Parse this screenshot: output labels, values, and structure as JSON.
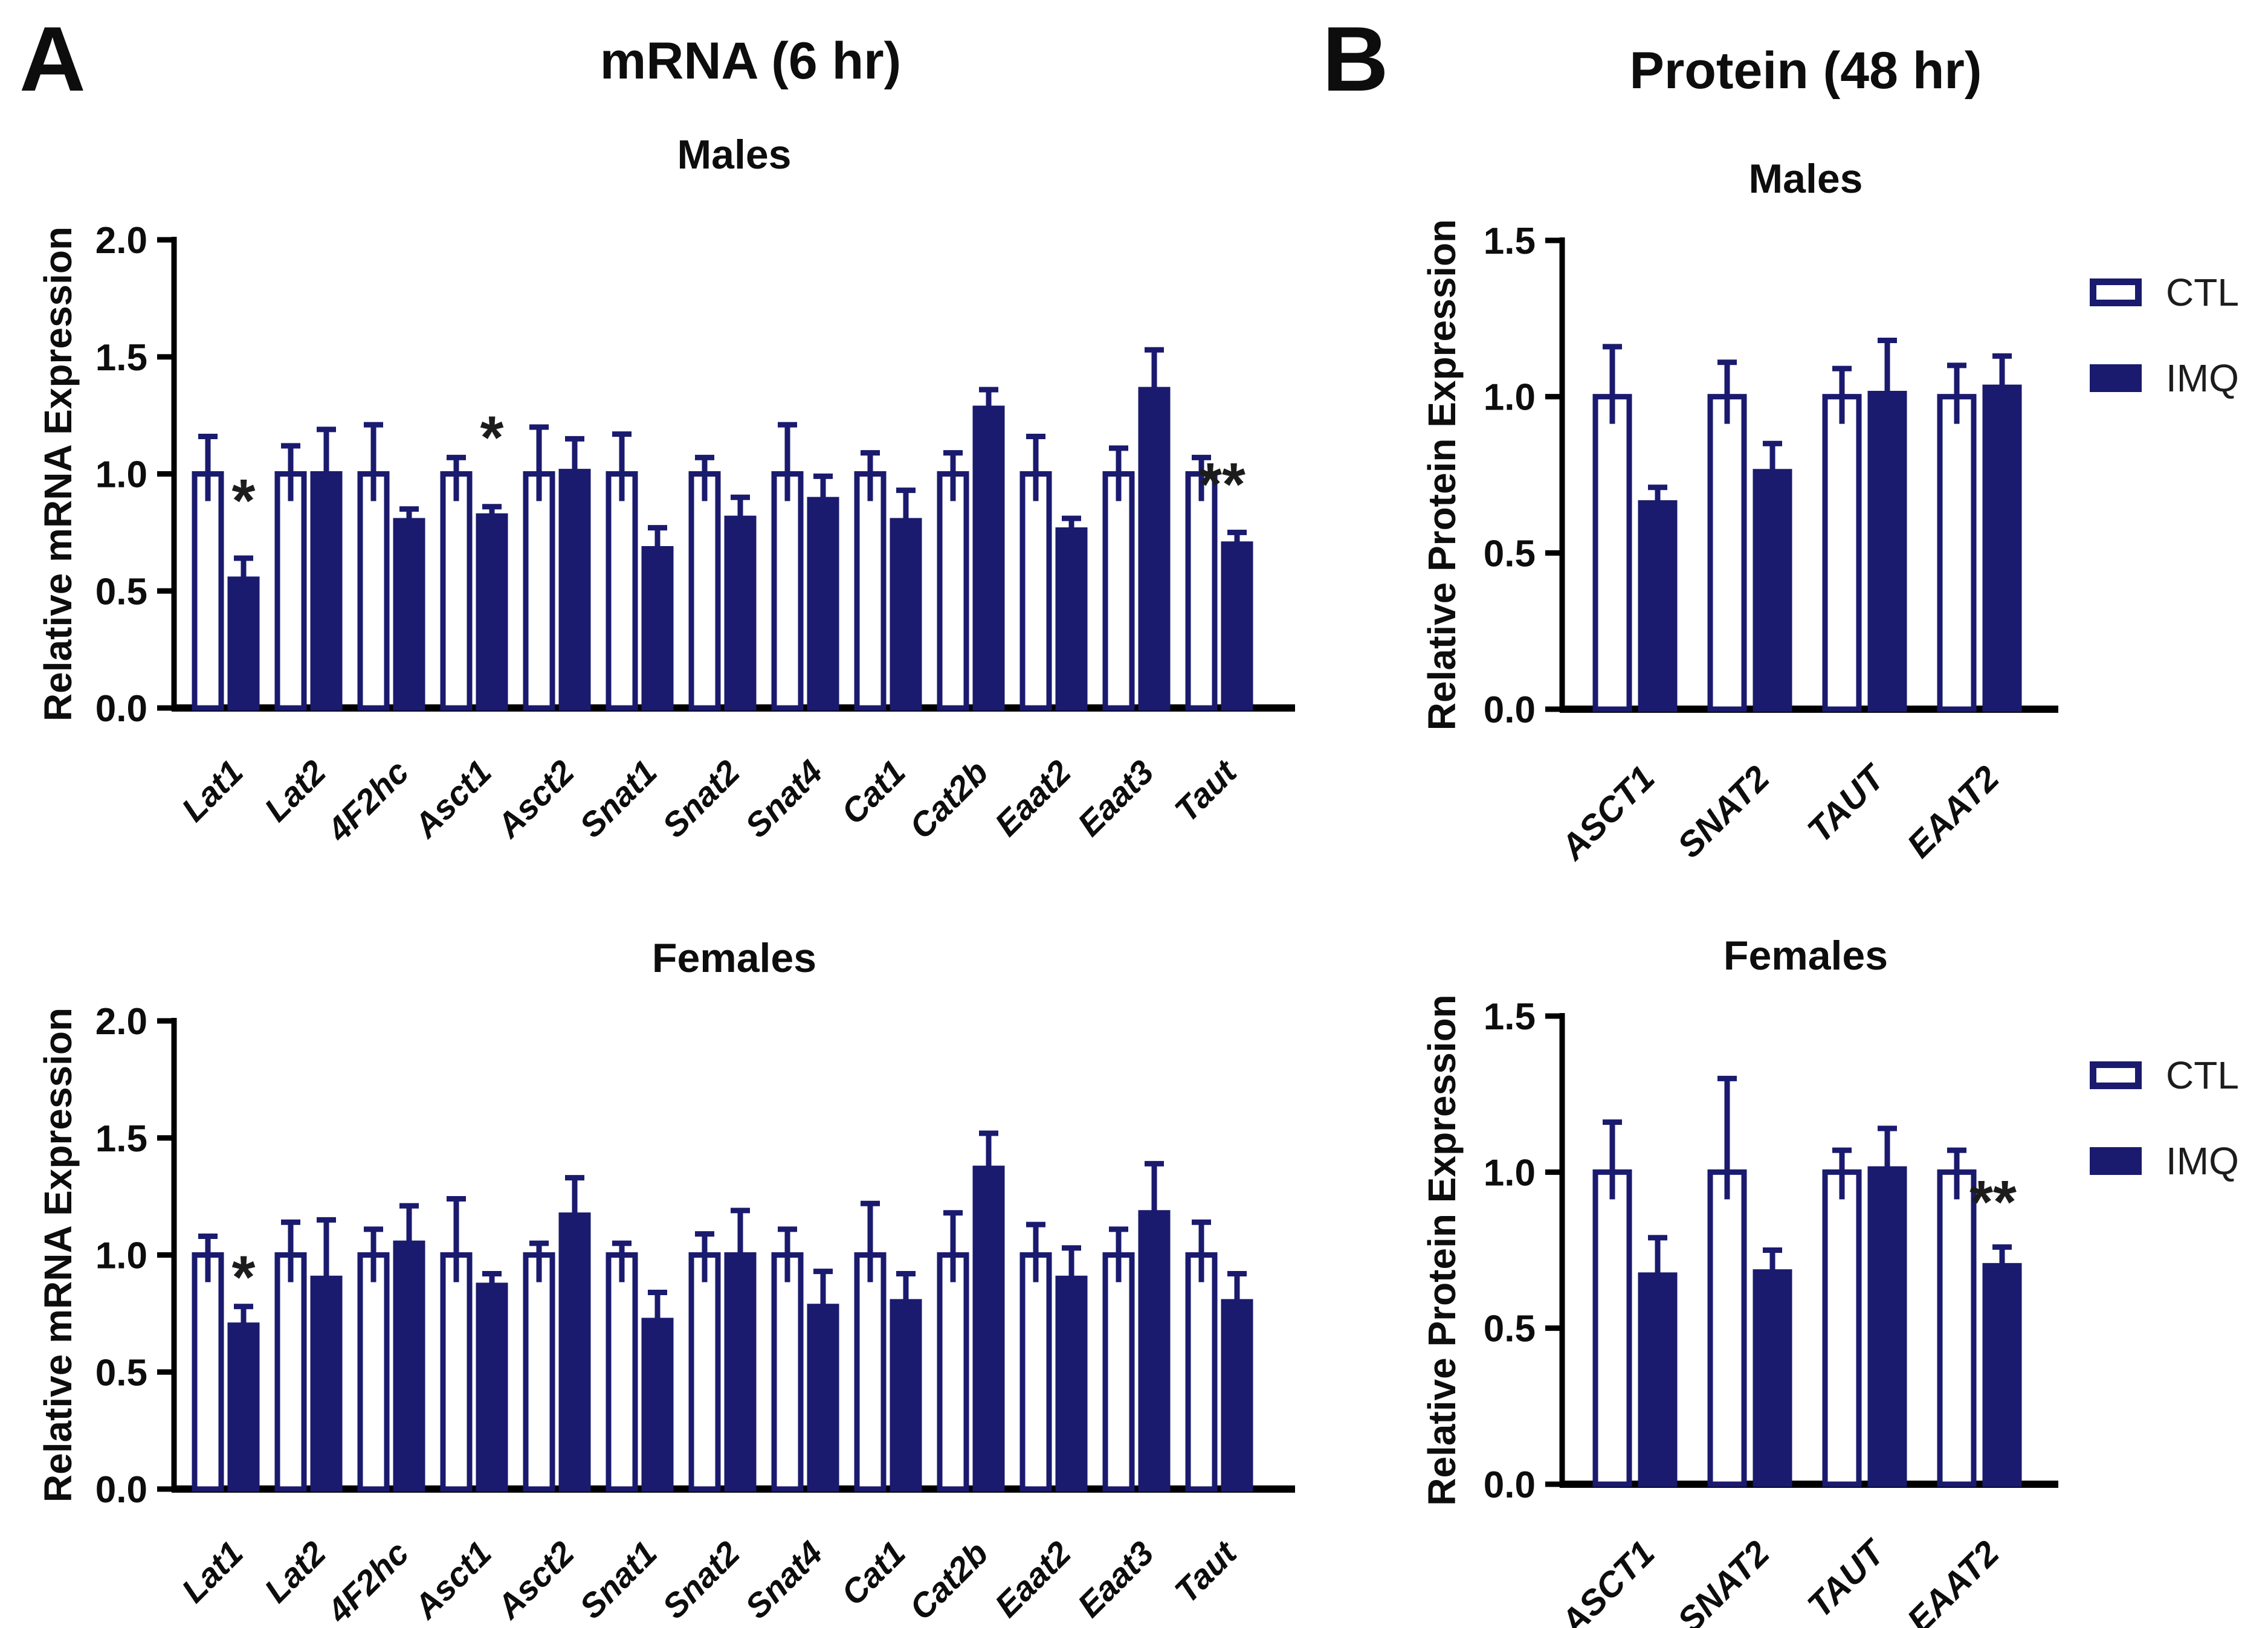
{
  "figure": {
    "panels": [
      {
        "letter": "A",
        "title": "mRNA (6 hr)"
      },
      {
        "letter": "B",
        "title": "Protein (48 hr)"
      }
    ]
  },
  "legend": {
    "entries": [
      {
        "label": "CTL",
        "style": "outline"
      },
      {
        "label": "IMQ",
        "style": "filled"
      }
    ]
  },
  "colors": {
    "navy": "#1a1a6e",
    "axis": "#000000",
    "text": "#0d0d0d"
  },
  "chart_data": [
    {
      "id": "a_males",
      "panel": "A",
      "subtitle": "Males",
      "type": "bar",
      "ylabel": "Relative mRNA Expression",
      "ylim": [
        0,
        2.0
      ],
      "yticks": [
        {
          "v": 0.0,
          "label": "0.0"
        },
        {
          "v": 0.5,
          "label": "0.5"
        },
        {
          "v": 1.0,
          "label": "1.0"
        },
        {
          "v": 1.5,
          "label": "1.5"
        },
        {
          "v": 2.0,
          "label": "2.0"
        }
      ],
      "categories": [
        "Lat1",
        "Lat2",
        "4F2hc",
        "Asct1",
        "Asct2",
        "Snat1",
        "Snat2",
        "Snat4",
        "Cat1",
        "Cat2b",
        "Eaat2",
        "Eaat3",
        "Taut"
      ],
      "series": [
        {
          "name": "CTL",
          "fill": "white",
          "values": [
            1.0,
            1.0,
            1.0,
            1.0,
            1.0,
            1.0,
            1.0,
            1.0,
            1.0,
            1.0,
            1.0,
            1.0,
            1.0
          ],
          "errors": [
            0.16,
            0.12,
            0.21,
            0.07,
            0.2,
            0.17,
            0.07,
            0.21,
            0.09,
            0.09,
            0.16,
            0.11,
            0.07
          ]
        },
        {
          "name": "IMQ",
          "fill": "navy",
          "values": [
            0.55,
            1.0,
            0.8,
            0.82,
            1.01,
            0.68,
            0.81,
            0.89,
            0.8,
            1.28,
            0.76,
            1.36,
            0.7
          ],
          "errors": [
            0.09,
            0.19,
            0.05,
            0.04,
            0.14,
            0.09,
            0.09,
            0.1,
            0.13,
            0.08,
            0.05,
            0.17,
            0.05
          ]
        }
      ],
      "annotations": [
        {
          "category": "Lat1",
          "series": "IMQ",
          "text": "*",
          "y": 0.88,
          "dx": 0
        },
        {
          "category": "Asct1",
          "series": "IMQ",
          "text": "*",
          "y": 1.15,
          "dx": 0
        },
        {
          "category": "Taut",
          "series": "IMQ",
          "text": "**",
          "y": 0.95,
          "dx": -25
        }
      ]
    },
    {
      "id": "a_females",
      "panel": "A",
      "subtitle": "Females",
      "type": "bar",
      "ylabel": "Relative mRNA Expression",
      "ylim": [
        0,
        2.0
      ],
      "yticks": [
        {
          "v": 0.0,
          "label": "0.0"
        },
        {
          "v": 0.5,
          "label": "0.5"
        },
        {
          "v": 1.0,
          "label": "1.0"
        },
        {
          "v": 1.5,
          "label": "1.5"
        },
        {
          "v": 2.0,
          "label": "2.0"
        }
      ],
      "categories": [
        "Lat1",
        "Lat2",
        "4F2hc",
        "Asct1",
        "Asct2",
        "Snat1",
        "Snat2",
        "Snat4",
        "Cat1",
        "Cat2b",
        "Eaat2",
        "Eaat3",
        "Taut"
      ],
      "series": [
        {
          "name": "CTL",
          "fill": "white",
          "values": [
            1.0,
            1.0,
            1.0,
            1.0,
            1.0,
            1.0,
            1.0,
            1.0,
            1.0,
            1.0,
            1.0,
            1.0,
            1.0
          ],
          "errors": [
            0.08,
            0.14,
            0.11,
            0.24,
            0.05,
            0.05,
            0.09,
            0.11,
            0.22,
            0.18,
            0.13,
            0.11,
            0.14
          ]
        },
        {
          "name": "IMQ",
          "fill": "navy",
          "values": [
            0.7,
            0.9,
            1.05,
            0.87,
            1.17,
            0.72,
            1.0,
            0.78,
            0.8,
            1.37,
            0.9,
            1.18,
            0.8
          ],
          "errors": [
            0.08,
            0.25,
            0.16,
            0.05,
            0.16,
            0.12,
            0.19,
            0.15,
            0.12,
            0.15,
            0.13,
            0.21,
            0.12
          ]
        }
      ],
      "annotations": [
        {
          "category": "Lat1",
          "series": "IMQ",
          "text": "*",
          "y": 0.9,
          "dx": 0
        }
      ]
    },
    {
      "id": "b_males",
      "panel": "B",
      "subtitle": "Males",
      "type": "bar",
      "ylabel": "Relative Protein Expression",
      "ylim": [
        0,
        1.5
      ],
      "yticks": [
        {
          "v": 0.0,
          "label": "0.0"
        },
        {
          "v": 0.5,
          "label": "0.5"
        },
        {
          "v": 1.0,
          "label": "1.0"
        },
        {
          "v": 1.5,
          "label": "1.5"
        }
      ],
      "categories": [
        "ASCT1",
        "SNAT2",
        "TAUT",
        "EAAT2"
      ],
      "series": [
        {
          "name": "CTL",
          "fill": "white",
          "values": [
            1.0,
            1.0,
            1.0,
            1.0
          ],
          "errors": [
            0.16,
            0.11,
            0.09,
            0.1
          ]
        },
        {
          "name": "IMQ",
          "fill": "navy",
          "values": [
            0.66,
            0.76,
            1.01,
            1.03
          ],
          "errors": [
            0.05,
            0.09,
            0.17,
            0.1
          ]
        }
      ],
      "annotations": []
    },
    {
      "id": "b_females",
      "panel": "B",
      "subtitle": "Females",
      "type": "bar",
      "ylabel": "Relative Protein Expression",
      "ylim": [
        0,
        1.5
      ],
      "yticks": [
        {
          "v": 0.0,
          "label": "0.0"
        },
        {
          "v": 0.5,
          "label": "0.5"
        },
        {
          "v": 1.0,
          "label": "1.0"
        },
        {
          "v": 1.5,
          "label": "1.5"
        }
      ],
      "categories": [
        "ASCT1",
        "SNAT2",
        "TAUT",
        "EAAT2"
      ],
      "series": [
        {
          "name": "CTL",
          "fill": "white",
          "values": [
            1.0,
            1.0,
            1.0,
            1.0
          ],
          "errors": [
            0.16,
            0.3,
            0.07,
            0.07
          ]
        },
        {
          "name": "IMQ",
          "fill": "navy",
          "values": [
            0.67,
            0.68,
            1.01,
            0.7
          ],
          "errors": [
            0.12,
            0.07,
            0.13,
            0.06
          ]
        }
      ],
      "annotations": [
        {
          "category": "EAAT2",
          "series": "IMQ",
          "text": "**",
          "y": 0.9,
          "dx": -15
        }
      ]
    }
  ]
}
